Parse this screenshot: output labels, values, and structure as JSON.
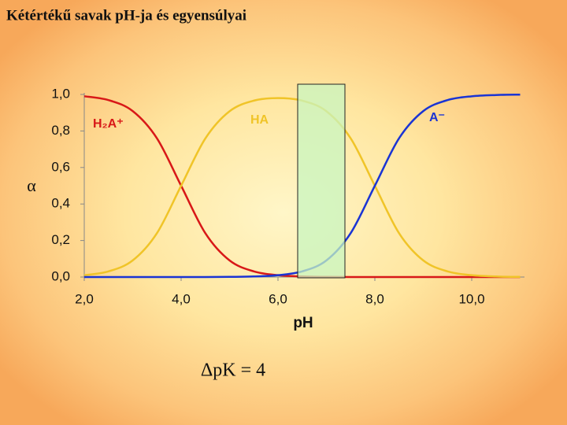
{
  "chart_data": {
    "type": "line",
    "title": "Kétértékű savak pH-ja és egyensúlyai",
    "x_label": "pH",
    "y_label": "α",
    "annotation": "ΔpK = 4",
    "x": [
      2,
      2.5,
      3,
      3.5,
      4,
      4.5,
      5,
      5.5,
      6,
      6.5,
      7,
      7.5,
      8,
      8.5,
      9,
      9.5,
      10,
      10.5,
      11
    ],
    "series": [
      {
        "name": "H₂A⁺",
        "color": "#d81818",
        "values": [
          0.99,
          0.969,
          0.909,
          0.76,
          0.5,
          0.24,
          0.091,
          0.031,
          0.01,
          0.003,
          0.001,
          0,
          0,
          0,
          0,
          0,
          0,
          0,
          0
        ]
      },
      {
        "name": "HA",
        "color": "#f0c428",
        "values": [
          0.01,
          0.031,
          0.091,
          0.24,
          0.5,
          0.759,
          0.908,
          0.966,
          0.98,
          0.966,
          0.908,
          0.76,
          0.5,
          0.24,
          0.091,
          0.031,
          0.01,
          0.003,
          0.001
        ]
      },
      {
        "name": "A⁻",
        "color": "#1a34d4",
        "values": [
          0,
          0,
          0,
          0,
          0,
          0,
          0.001,
          0.003,
          0.01,
          0.031,
          0.091,
          0.24,
          0.5,
          0.76,
          0.909,
          0.969,
          0.99,
          0.997,
          0.999
        ]
      }
    ],
    "xlim": [
      2,
      11
    ],
    "ylim": [
      0,
      1
    ],
    "xticks": [
      {
        "value": 2,
        "label": "2,0"
      },
      {
        "value": 4,
        "label": "4,0"
      },
      {
        "value": 6,
        "label": "6,0"
      },
      {
        "value": 8,
        "label": "8,0"
      },
      {
        "value": 10,
        "label": "10,0"
      }
    ],
    "yticks": [
      {
        "value": 0,
        "label": "0,0"
      },
      {
        "value": 0.2,
        "label": "0,2"
      },
      {
        "value": 0.4,
        "label": "0,4"
      },
      {
        "value": 0.6,
        "label": "0,6"
      },
      {
        "value": 0.8,
        "label": "0,8"
      },
      {
        "value": 1,
        "label": "1,0"
      }
    ],
    "grid": false
  }
}
